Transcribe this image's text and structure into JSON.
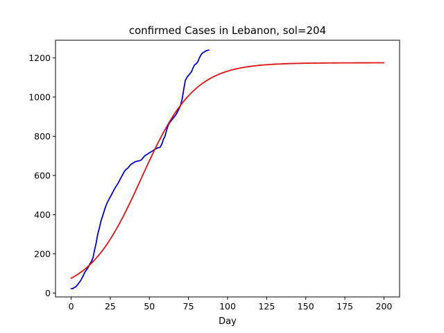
{
  "chart_data": {
    "type": "line",
    "title": "confirmed Cases in Lebanon, sol=204",
    "xlabel": "Day",
    "ylabel": "",
    "xlim": [
      -10,
      210
    ],
    "ylim": [
      -20,
      1290
    ],
    "xticks": [
      0,
      25,
      50,
      75,
      100,
      125,
      150,
      175,
      200
    ],
    "yticks": [
      0,
      200,
      400,
      600,
      800,
      1000,
      1200
    ],
    "grid": false,
    "legend": null,
    "series": [
      {
        "color": "#0000cc",
        "x": [
          0,
          1,
          2,
          3,
          4,
          5,
          6,
          7,
          8,
          9,
          10,
          11,
          12,
          13,
          14,
          15,
          16,
          17,
          18,
          19,
          20,
          21,
          22,
          23,
          24,
          25,
          26,
          27,
          28,
          29,
          30,
          31,
          32,
          33,
          34,
          35,
          36,
          37,
          38,
          39,
          40,
          41,
          42,
          43,
          44,
          45,
          46,
          47,
          48,
          49,
          50,
          51,
          52,
          53,
          54,
          55,
          56,
          57,
          58,
          59,
          60,
          61,
          62,
          63,
          64,
          65,
          66,
          67,
          68,
          69,
          70,
          71,
          72,
          73,
          74,
          75,
          76,
          77,
          78,
          79,
          80,
          81,
          82,
          83,
          84,
          85,
          86,
          87,
          88
        ],
        "y": [
          22,
          22,
          28,
          32,
          41,
          52,
          62,
          77,
          93,
          110,
          120,
          133,
          149,
          161,
          180,
          220,
          255,
          300,
          330,
          365,
          390,
          415,
          440,
          460,
          475,
          490,
          505,
          520,
          535,
          548,
          560,
          575,
          590,
          605,
          620,
          630,
          635,
          645,
          655,
          660,
          665,
          670,
          672,
          674,
          676,
          680,
          690,
          700,
          705,
          710,
          715,
          720,
          725,
          730,
          735,
          740,
          742,
          745,
          760,
          785,
          800,
          830,
          855,
          870,
          880,
          890,
          900,
          910,
          925,
          940,
          960,
          990,
          1040,
          1085,
          1100,
          1110,
          1120,
          1130,
          1150,
          1165,
          1170,
          1180,
          1200,
          1215,
          1225,
          1230,
          1235,
          1238,
          1240
        ]
      },
      {
        "color": "#dd1111",
        "model": "logistic",
        "params": {
          "L": 1175,
          "k": 0.0595,
          "x0": 45
        },
        "x_range": [
          0,
          200
        ]
      }
    ]
  }
}
